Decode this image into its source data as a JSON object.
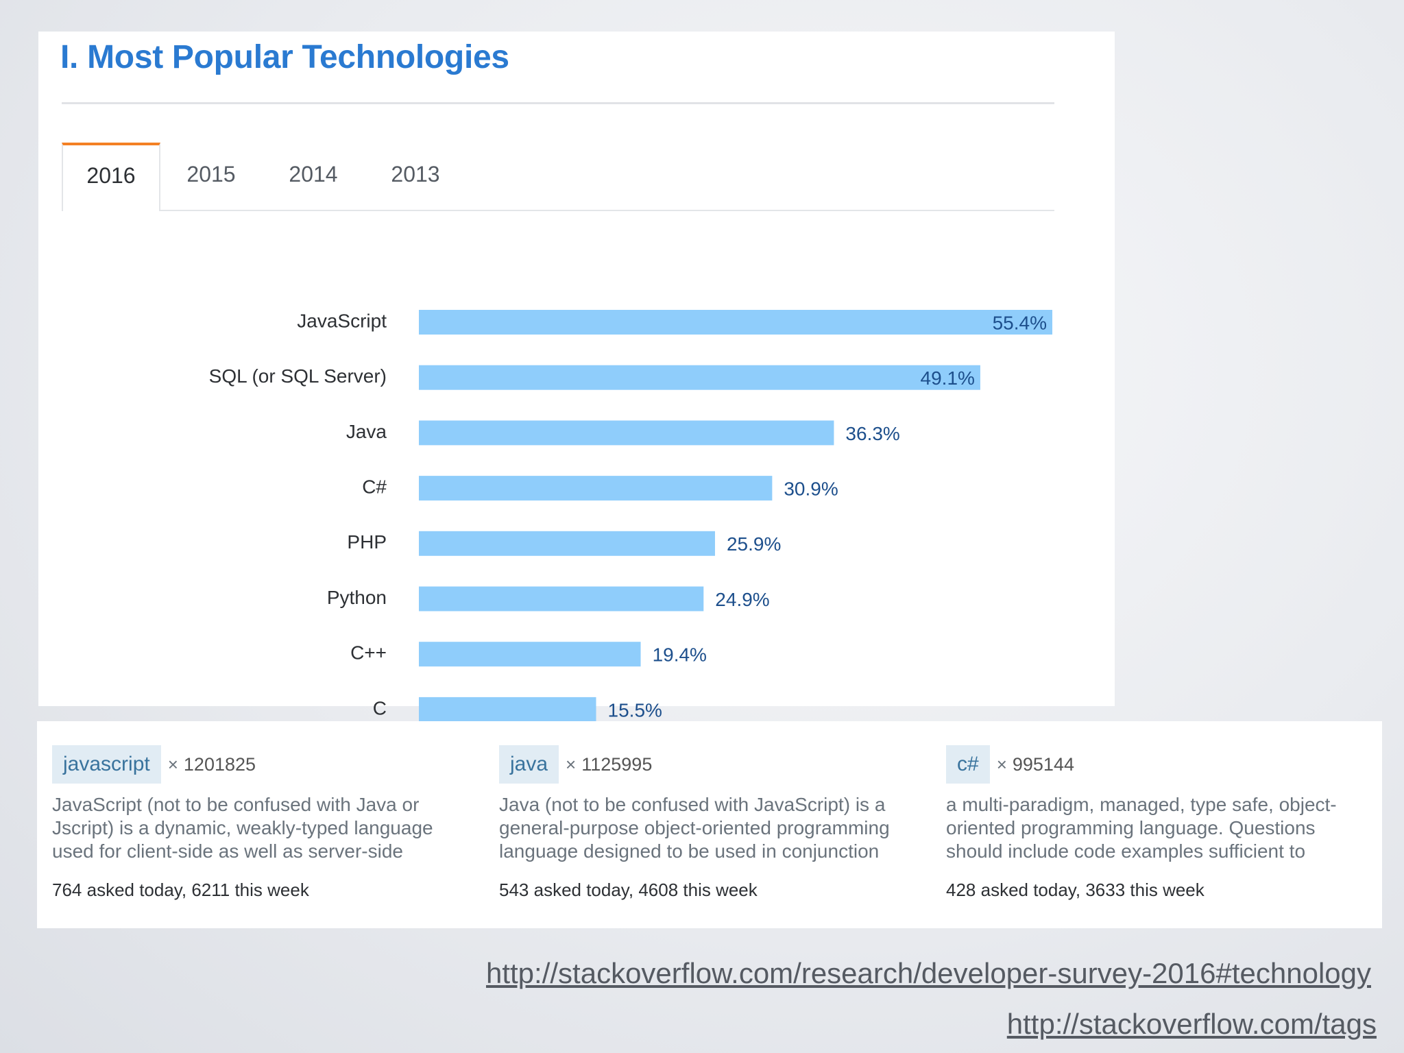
{
  "title": "I. Most Popular Technologies",
  "tabs": [
    "2016",
    "2015",
    "2014",
    "2013"
  ],
  "active_tab": "2016",
  "colors": {
    "accent": "#2a7ad1",
    "tab_highlight": "#f48024",
    "bar": "#8fcdfb",
    "value_label": "#1d4f8c",
    "tag_bg": "#e1ecf4",
    "tag_text": "#39739d"
  },
  "chart_data": {
    "type": "bar",
    "orientation": "horizontal",
    "categories": [
      "JavaScript",
      "SQL (or SQL Server)",
      "Java",
      "C#",
      "PHP",
      "Python",
      "C++",
      "C"
    ],
    "values": [
      55.4,
      49.1,
      36.3,
      30.9,
      25.9,
      24.9,
      19.4,
      15.5
    ],
    "value_labels": [
      "55.4%",
      "49.1%",
      "36.3%",
      "30.9%",
      "25.9%",
      "24.9%",
      "19.4%",
      "15.5%"
    ],
    "unit": "%",
    "xlim": [
      0,
      55.4
    ],
    "grid": false,
    "title": "",
    "xlabel": "",
    "ylabel": ""
  },
  "tags": [
    {
      "name": "javascript",
      "multiplier": "×",
      "count": "1201825",
      "description": "JavaScript (not to be confused with Java or Jscript) is a dynamic, weakly-typed language used for client-side as well as server-side",
      "stats": "764 asked today, 6211 this week"
    },
    {
      "name": "java",
      "multiplier": "×",
      "count": "1125995",
      "description": "Java (not to be confused with JavaScript) is a general-purpose object-oriented programming language designed to be used in conjunction",
      "stats": "543 asked today, 4608 this week"
    },
    {
      "name": "c#",
      "multiplier": "×",
      "count": "995144",
      "description": "a multi-paradigm, managed, type safe, object-oriented programming language. Questions should include code examples sufficient to",
      "stats": "428 asked today, 3633 this week"
    }
  ],
  "links": [
    "http://stackoverflow.com/research/developer-survey-2016#technology",
    "http://stackoverflow.com/tags"
  ]
}
